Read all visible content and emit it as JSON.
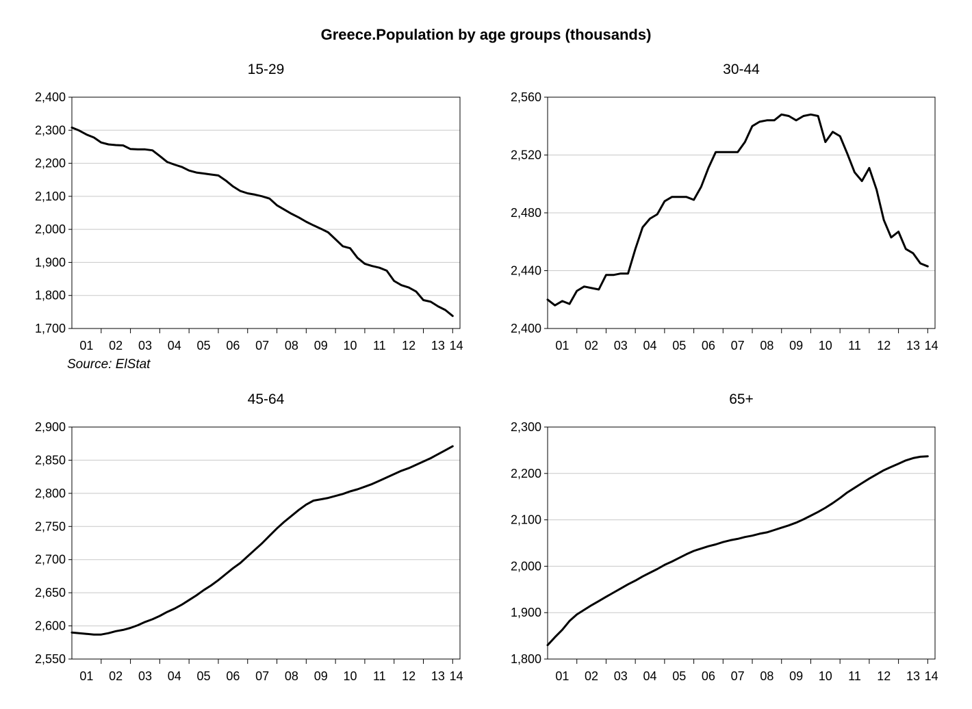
{
  "title": "Greece.Population by age groups (thousands)",
  "source": "Source: ElStat",
  "chart_data": [
    {
      "type": "line",
      "title": "15-29",
      "xlabel": "",
      "ylabel": "",
      "x_tick_labels": [
        "01",
        "02",
        "03",
        "04",
        "05",
        "06",
        "07",
        "08",
        "09",
        "10",
        "11",
        "12",
        "13",
        "14"
      ],
      "y_ticks": [
        1700,
        1800,
        1900,
        2000,
        2100,
        2200,
        2300,
        2400
      ],
      "y_tick_labels": [
        "1,700",
        "1,800",
        "1,900",
        "2,000",
        "2,100",
        "2,200",
        "2,300",
        "2,400"
      ],
      "ylim": [
        1700,
        2400
      ],
      "grid": true,
      "series": [
        {
          "x_start": 2001.0,
          "x_step": 0.25,
          "values": [
            2308,
            2299,
            2287,
            2278,
            2263,
            2257,
            2255,
            2254,
            2243,
            2242,
            2242,
            2239,
            2222,
            2204,
            2196,
            2189,
            2178,
            2172,
            2169,
            2166,
            2163,
            2148,
            2130,
            2116,
            2109,
            2105,
            2100,
            2093,
            2073,
            2060,
            2047,
            2036,
            2023,
            2012,
            2002,
            1991,
            1970,
            1949,
            1943,
            1914,
            1896,
            1889,
            1884,
            1875,
            1844,
            1831,
            1824,
            1812,
            1786,
            1781,
            1767,
            1756,
            1738
          ]
        }
      ]
    },
    {
      "type": "line",
      "title": "30-44",
      "xlabel": "",
      "ylabel": "",
      "x_tick_labels": [
        "01",
        "02",
        "03",
        "04",
        "05",
        "06",
        "07",
        "08",
        "09",
        "10",
        "11",
        "12",
        "13",
        "14"
      ],
      "y_ticks": [
        2400,
        2440,
        2480,
        2520,
        2560
      ],
      "y_tick_labels": [
        "2,400",
        "2,440",
        "2,480",
        "2,520",
        "2,560"
      ],
      "ylim": [
        2400,
        2560
      ],
      "grid": true,
      "series": [
        {
          "x_start": 2001.0,
          "x_step": 0.25,
          "values": [
            2420,
            2416,
            2419,
            2417,
            2426,
            2429,
            2428,
            2427,
            2437,
            2437,
            2438,
            2438,
            2455,
            2470,
            2476,
            2479,
            2488,
            2491,
            2491,
            2491,
            2489,
            2498,
            2511,
            2522,
            2522,
            2522,
            2522,
            2529,
            2540,
            2543,
            2544,
            2544,
            2548,
            2547,
            2544,
            2547,
            2548,
            2547,
            2529,
            2536,
            2533,
            2521,
            2508,
            2502,
            2511,
            2496,
            2475,
            2463,
            2467,
            2455,
            2452,
            2445,
            2443
          ]
        }
      ]
    },
    {
      "type": "line",
      "title": "45-64",
      "xlabel": "",
      "ylabel": "",
      "x_tick_labels": [
        "01",
        "02",
        "03",
        "04",
        "05",
        "06",
        "07",
        "08",
        "09",
        "10",
        "11",
        "12",
        "13",
        "14"
      ],
      "y_ticks": [
        2550,
        2600,
        2650,
        2700,
        2750,
        2800,
        2850,
        2900
      ],
      "y_tick_labels": [
        "2,550",
        "2,600",
        "2,650",
        "2,700",
        "2,750",
        "2,800",
        "2,850",
        "2,900"
      ],
      "ylim": [
        2550,
        2900
      ],
      "grid": true,
      "series": [
        {
          "x_start": 2001.0,
          "x_step": 0.25,
          "values": [
            2590,
            2589,
            2588,
            2587,
            2587,
            2589,
            2592,
            2594,
            2597,
            2601,
            2606,
            2610,
            2615,
            2621,
            2626,
            2632,
            2639,
            2646,
            2654,
            2661,
            2669,
            2678,
            2687,
            2695,
            2705,
            2715,
            2725,
            2736,
            2747,
            2757,
            2766,
            2775,
            2783,
            2789,
            2791,
            2793,
            2796,
            2799,
            2803,
            2806,
            2810,
            2814,
            2819,
            2824,
            2829,
            2834,
            2838,
            2843,
            2848,
            2853,
            2859,
            2865,
            2871
          ]
        }
      ]
    },
    {
      "type": "line",
      "title": "65+",
      "xlabel": "",
      "ylabel": "",
      "x_tick_labels": [
        "01",
        "02",
        "03",
        "04",
        "05",
        "06",
        "07",
        "08",
        "09",
        "10",
        "11",
        "12",
        "13",
        "14"
      ],
      "y_ticks": [
        1800,
        1900,
        2000,
        2100,
        2200,
        2300
      ],
      "y_tick_labels": [
        "1,800",
        "1,900",
        "2,000",
        "2,100",
        "2,200",
        "2,300"
      ],
      "ylim": [
        1800,
        2300
      ],
      "grid": true,
      "series": [
        {
          "x_start": 2001.0,
          "x_step": 0.25,
          "values": [
            1830,
            1847,
            1863,
            1882,
            1896,
            1906,
            1916,
            1925,
            1934,
            1943,
            1952,
            1961,
            1969,
            1978,
            1986,
            1994,
            2003,
            2010,
            2018,
            2026,
            2033,
            2038,
            2043,
            2047,
            2052,
            2056,
            2059,
            2063,
            2066,
            2070,
            2073,
            2078,
            2083,
            2088,
            2094,
            2101,
            2109,
            2117,
            2126,
            2136,
            2147,
            2159,
            2169,
            2179,
            2189,
            2198,
            2207,
            2214,
            2221,
            2228,
            2233,
            2236,
            2237
          ]
        }
      ]
    }
  ]
}
